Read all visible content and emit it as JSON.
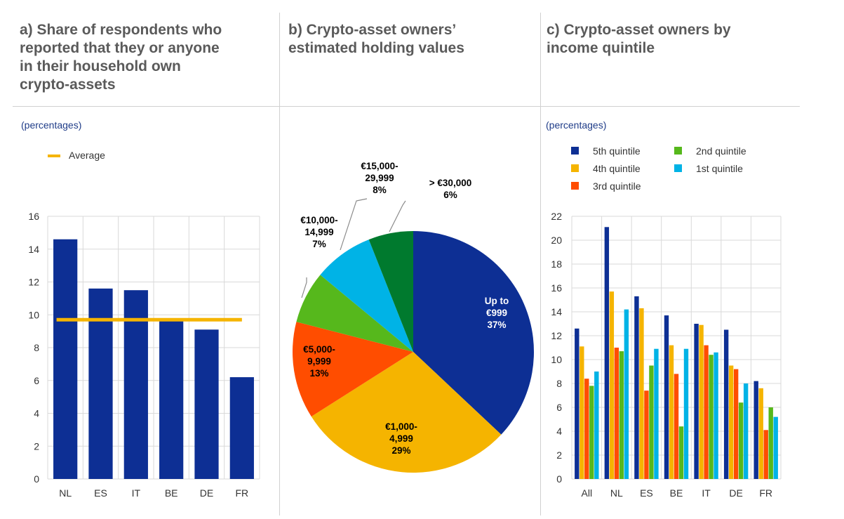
{
  "panels": {
    "a": {
      "title_lines": [
        "a) Share of respondents who",
        "reported that they or anyone",
        "in their household own",
        "crypto-assets"
      ],
      "unit": "(percentages)"
    },
    "b": {
      "title_lines": [
        "b) Crypto-asset owners’",
        "estimated holding values"
      ]
    },
    "c": {
      "title_lines": [
        "c) Crypto-asset owners by",
        "income quintile"
      ],
      "unit": "(percentages)"
    }
  },
  "colors": {
    "navy": "#0d2f94",
    "orange": "#f5b400",
    "red": "#ff4d00",
    "green": "#56b81c",
    "cyan": "#00b3e6",
    "darkgreen": "#007a2e",
    "grid": "#d9d9d9"
  },
  "chart_data": [
    {
      "type": "bar",
      "categories": [
        "NL",
        "ES",
        "IT",
        "BE",
        "DE",
        "FR"
      ],
      "values": [
        14.6,
        11.6,
        11.5,
        9.7,
        9.1,
        6.2
      ],
      "average": 9.7,
      "legend": [
        "Average"
      ],
      "ylim": [
        0,
        16
      ],
      "yticks": [
        0,
        2,
        4,
        6,
        8,
        10,
        12,
        14,
        16
      ],
      "grid": true
    },
    {
      "type": "pie",
      "slices": [
        {
          "label_lines": [
            "Up to",
            "€999",
            "37%"
          ],
          "value": 37
        },
        {
          "label_lines": [
            "€1,000-",
            "4,999",
            "29%"
          ],
          "value": 29
        },
        {
          "label_lines": [
            "€5,000-",
            "9,999",
            "13%"
          ],
          "value": 13
        },
        {
          "label_lines": [
            "€10,000-",
            "14,999",
            "7%"
          ],
          "value": 7
        },
        {
          "label_lines": [
            "€15,000-",
            "29,999",
            "8%"
          ],
          "value": 8
        },
        {
          "label_lines": [
            "> €30,000",
            "6%"
          ],
          "value": 6
        }
      ]
    },
    {
      "type": "bar",
      "categories": [
        "All",
        "NL",
        "ES",
        "BE",
        "IT",
        "DE",
        "FR"
      ],
      "series": [
        {
          "name": "5th quintile",
          "values": [
            12.6,
            21.1,
            15.3,
            13.7,
            13.0,
            12.5,
            8.2
          ]
        },
        {
          "name": "4th quintile",
          "values": [
            11.1,
            15.7,
            14.3,
            11.2,
            12.9,
            9.5,
            7.6
          ]
        },
        {
          "name": "3rd quintile",
          "values": [
            8.4,
            11.0,
            7.4,
            8.8,
            11.2,
            9.2,
            4.1
          ]
        },
        {
          "name": "2nd quintile",
          "values": [
            7.8,
            10.7,
            9.5,
            4.4,
            10.4,
            6.4,
            6.0
          ]
        },
        {
          "name": "1st quintile",
          "values": [
            9.0,
            14.2,
            10.9,
            10.9,
            10.6,
            8.0,
            5.2
          ]
        }
      ],
      "ylim": [
        0,
        22
      ],
      "yticks": [
        0,
        2,
        4,
        6,
        8,
        10,
        12,
        14,
        16,
        18,
        20,
        22
      ],
      "grid": true
    }
  ]
}
